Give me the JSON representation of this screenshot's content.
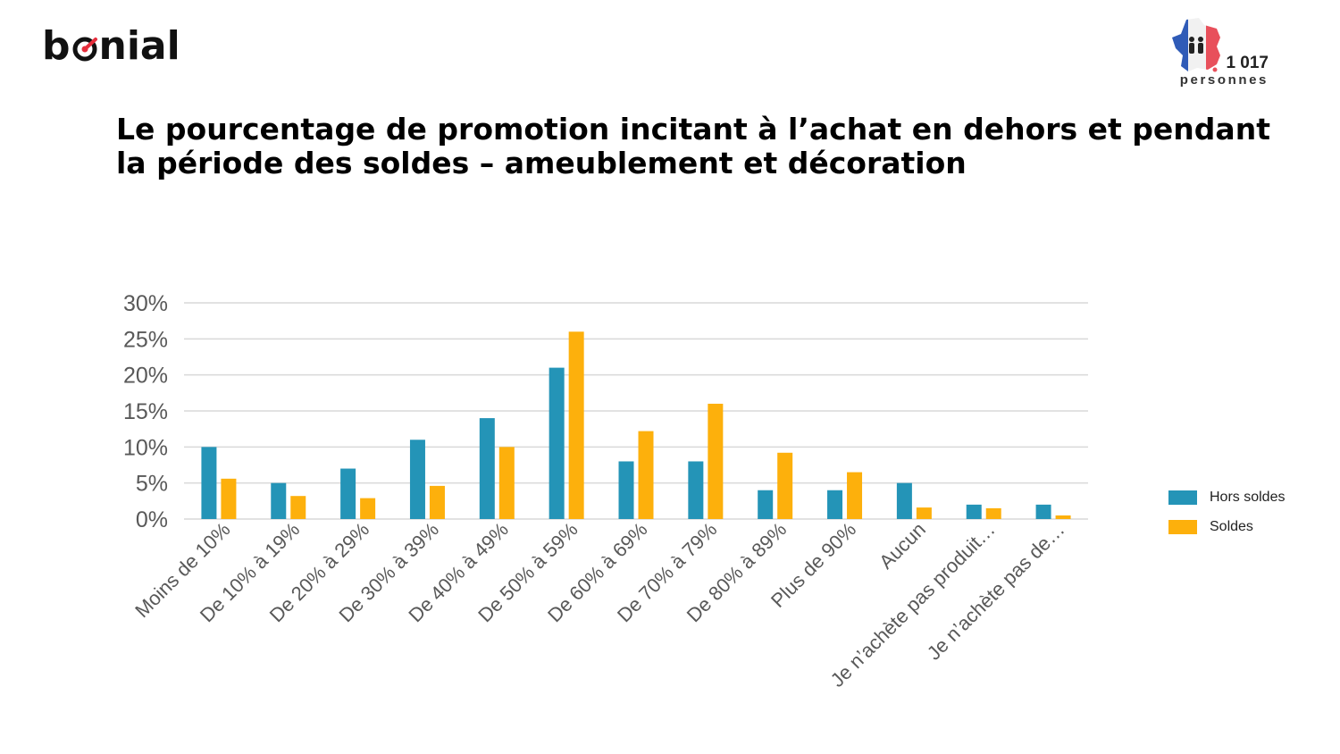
{
  "brand": {
    "logo_text_1": "b",
    "logo_text_2": "nial"
  },
  "sample": {
    "count": "1 017",
    "unit": "personnes"
  },
  "title": "Le pourcentage de promotion incitant à l’achat en dehors et pendant la période des soldes – ameublement et décoration",
  "colors": {
    "hors_soldes": "#2494B7",
    "soldes": "#FDB00C",
    "grid": "#D9D9D9",
    "axis_text": "#595959",
    "logo_accent": "#E62E3C"
  },
  "chart_data": {
    "type": "bar",
    "categories": [
      "Moins de 10%",
      "De 10% à 19%",
      "De 20% à 29%",
      "De 30% à 39%",
      "De 40% à 49%",
      "De 50% à 59%",
      "De 60% à 69%",
      "De 70% à 79%",
      "De 80% à 89%",
      "Plus de 90%",
      "Aucun",
      "Je n’achète pas produit…",
      "Je n’achète pas de…"
    ],
    "series": [
      {
        "name": "Hors soldes",
        "values": [
          10,
          5,
          7,
          11,
          14,
          21,
          8,
          8,
          4,
          4,
          5,
          2,
          2
        ]
      },
      {
        "name": "Soldes",
        "values": [
          5.6,
          3.2,
          2.9,
          4.6,
          10,
          26,
          12.2,
          16,
          9.2,
          6.5,
          1.6,
          1.5,
          0.5
        ]
      }
    ],
    "yticks": [
      "0%",
      "5%",
      "10%",
      "15%",
      "20%",
      "25%",
      "30%"
    ],
    "ylim": [
      0,
      30
    ],
    "grid": true,
    "legend_position": "right"
  }
}
